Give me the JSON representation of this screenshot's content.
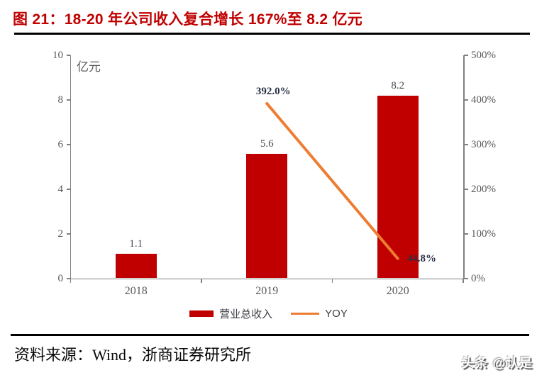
{
  "header": {
    "title": "图 21：18-20 年公司收入复合增长 167%至 8.2 亿元"
  },
  "chart_data": {
    "type": "bar",
    "subtype": "combo-bar-line-dual-axis",
    "categories": [
      "2018",
      "2019",
      "2020"
    ],
    "series": [
      {
        "name": "营业总收入",
        "type": "bar",
        "axis": "left",
        "values": [
          1.1,
          5.6,
          8.2
        ],
        "labels": [
          "1.1",
          "5.6",
          "8.2"
        ],
        "color": "#c00000"
      },
      {
        "name": "YOY",
        "type": "line",
        "axis": "right",
        "values": [
          null,
          392.0,
          44.8
        ],
        "labels": [
          null,
          "392.0%",
          "44.8%"
        ],
        "color": "#ed7d31"
      }
    ],
    "left_axis": {
      "unit": "亿元",
      "min": 0,
      "max": 10,
      "ticks": [
        "0",
        "2",
        "4",
        "6",
        "8",
        "10"
      ]
    },
    "right_axis": {
      "min": 0,
      "max": 500,
      "ticks": [
        "0%",
        "100%",
        "200%",
        "300%",
        "400%",
        "500%"
      ]
    },
    "legend_position": "bottom",
    "grid": false
  },
  "footer": {
    "source": "资料来源：Wind，浙商证券研究所",
    "watermark": "头条 @认是"
  }
}
